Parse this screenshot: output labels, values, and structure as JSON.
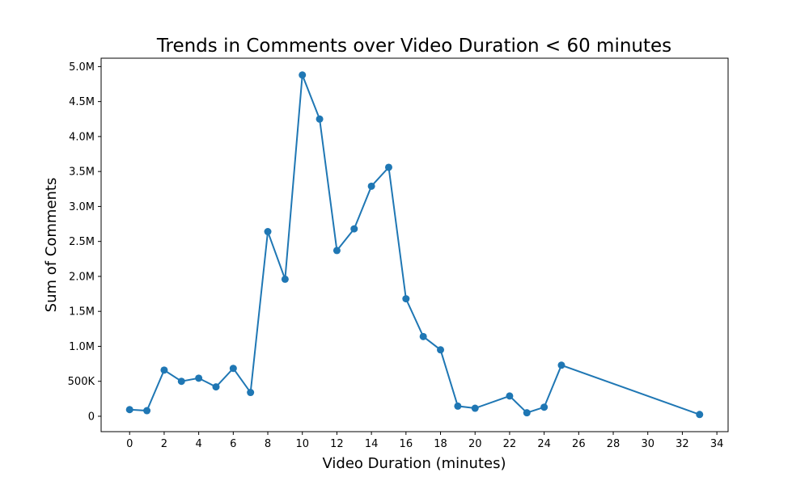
{
  "chart_data": {
    "type": "line",
    "title": "Trends in Comments over Video Duration < 60 minutes",
    "xlabel": "Video Duration (minutes)",
    "ylabel": "Sum of Comments",
    "xlim": [
      -1.65,
      34.65
    ],
    "ylim": [
      -220000,
      5120000
    ],
    "x_ticks": [
      0,
      2,
      4,
      6,
      8,
      10,
      12,
      14,
      16,
      18,
      20,
      22,
      24,
      26,
      28,
      30,
      32,
      34
    ],
    "x_tick_labels": [
      "0",
      "2",
      "4",
      "6",
      "8",
      "10",
      "12",
      "14",
      "16",
      "18",
      "20",
      "22",
      "24",
      "26",
      "28",
      "30",
      "32",
      "34"
    ],
    "y_ticks": [
      0,
      500000,
      1000000,
      1500000,
      2000000,
      2500000,
      3000000,
      3500000,
      4000000,
      4500000,
      5000000
    ],
    "y_tick_labels": [
      "0",
      "500K",
      "1.0M",
      "1.5M",
      "2.0M",
      "2.5M",
      "3.0M",
      "3.5M",
      "4.0M",
      "4.5M",
      "5.0M"
    ],
    "grid": false,
    "series": [
      {
        "color": "#1f77b4",
        "marker": "circle",
        "x": [
          0,
          1,
          2,
          3,
          4,
          5,
          6,
          7,
          8,
          9,
          10,
          11,
          12,
          13,
          14,
          15,
          16,
          17,
          18,
          19,
          20,
          22,
          23,
          24,
          25,
          33
        ],
        "y": [
          95000,
          80000,
          660000,
          500000,
          545000,
          420000,
          685000,
          340000,
          2640000,
          1960000,
          4880000,
          4250000,
          2370000,
          2680000,
          3290000,
          3560000,
          1680000,
          1140000,
          950000,
          145000,
          115000,
          290000,
          50000,
          130000,
          730000,
          25000
        ]
      }
    ]
  }
}
